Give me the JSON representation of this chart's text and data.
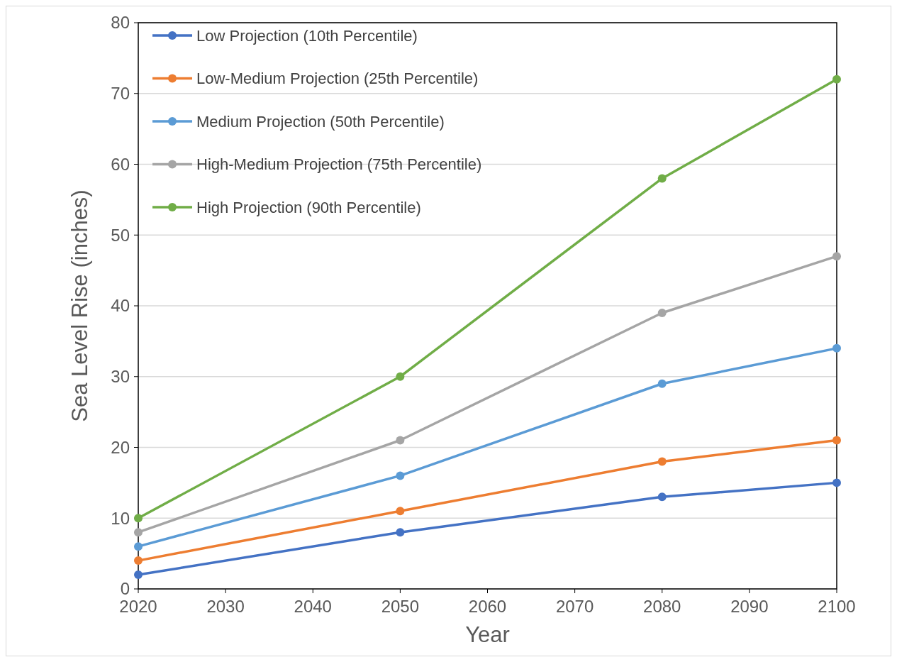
{
  "chart_data": {
    "type": "line",
    "xlabel": "Year",
    "ylabel": "Sea Level Rise (inches)",
    "x": [
      2020,
      2050,
      2080,
      2100
    ],
    "xlim": [
      2020,
      2100
    ],
    "xticks": [
      2020,
      2030,
      2040,
      2050,
      2060,
      2070,
      2080,
      2090,
      2100
    ],
    "ylim": [
      0,
      80
    ],
    "yticks": [
      0,
      10,
      20,
      30,
      40,
      50,
      60,
      70,
      80
    ],
    "grid": "y",
    "legend": "top left",
    "marker": "circle",
    "line_style": "solid",
    "series": [
      {
        "name": "Low Projection (10th Percentile)",
        "color": "#4472c4",
        "values": [
          2,
          8,
          13,
          15
        ]
      },
      {
        "name": "Low-Medium Projection (25th Percentile)",
        "color": "#ed7d31",
        "values": [
          4,
          11,
          18,
          21
        ]
      },
      {
        "name": "Medium Projection (50th Percentile)",
        "color": "#5b9bd5",
        "values": [
          6,
          16,
          29,
          34
        ]
      },
      {
        "name": "High-Medium Projection (75th Percentile)",
        "color": "#a5a5a5",
        "values": [
          8,
          21,
          39,
          47
        ]
      },
      {
        "name": "High Projection (90th Percentile)",
        "color": "#70ad47",
        "values": [
          10,
          30,
          58,
          72
        ]
      }
    ]
  }
}
